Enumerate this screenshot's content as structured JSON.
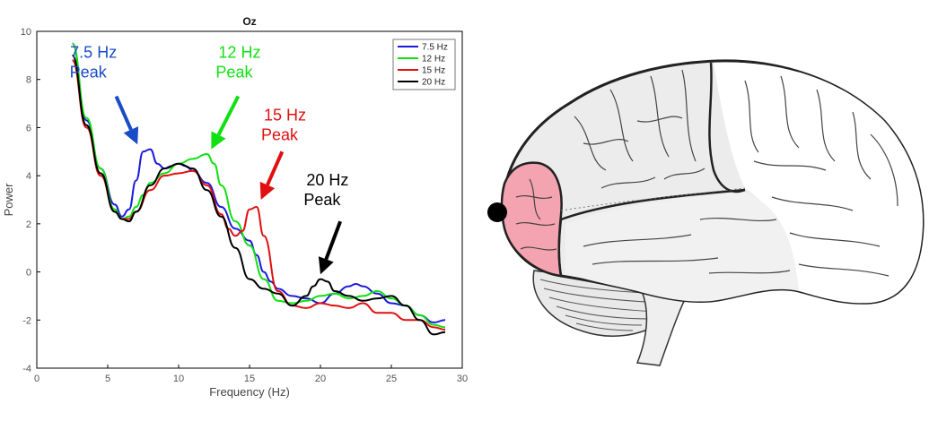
{
  "chart_data": {
    "type": "line",
    "title": "Oz",
    "xlabel": "Frequency (Hz)",
    "ylabel": "Power",
    "xlim": [
      0,
      30
    ],
    "ylim": [
      -4,
      10
    ],
    "xticks": [
      0,
      5,
      10,
      15,
      20,
      25,
      30
    ],
    "yticks": [
      -4,
      -2,
      0,
      2,
      4,
      6,
      8,
      10
    ],
    "grid": false,
    "legend_position": "top-right",
    "series": [
      {
        "name": "7.5 Hz",
        "color": "#1a1adc",
        "x": [
          2.5,
          3.5,
          4.5,
          5.5,
          6.0,
          6.5,
          7.0,
          7.5,
          8.0,
          8.5,
          9.0,
          9.5,
          10.0,
          10.5,
          11.0,
          12.0,
          13.0,
          14.0,
          15.0,
          15.5,
          16.0,
          16.5,
          17.0,
          18.0,
          19.0,
          20.0,
          21.0,
          22.0,
          22.5,
          23.0,
          24.0,
          25.0,
          26.0,
          27.0,
          28.0,
          28.8
        ],
        "y": [
          9.5,
          6.3,
          4.3,
          2.8,
          2.3,
          2.6,
          3.8,
          5.0,
          5.1,
          4.5,
          4.3,
          4.4,
          4.5,
          4.4,
          4.2,
          3.7,
          2.7,
          1.8,
          1.3,
          0.7,
          0.0,
          -0.4,
          -0.7,
          -1.0,
          -1.1,
          -1.3,
          -0.9,
          -0.6,
          -0.5,
          -0.6,
          -0.9,
          -1.3,
          -1.4,
          -1.8,
          -2.1,
          -2.0
        ]
      },
      {
        "name": "12 Hz",
        "color": "#11e011",
        "x": [
          2.5,
          3.5,
          4.5,
          5.5,
          6.0,
          6.5,
          7.0,
          7.5,
          8.0,
          9.0,
          10.0,
          11.0,
          12.0,
          12.5,
          13.0,
          14.0,
          15.0,
          16.0,
          17.0,
          18.0,
          19.0,
          20.0,
          21.0,
          22.0,
          23.0,
          24.0,
          25.0,
          26.0,
          27.0,
          28.0,
          28.8
        ],
        "y": [
          9.5,
          6.4,
          4.3,
          2.6,
          2.2,
          2.3,
          2.7,
          3.2,
          3.7,
          4.1,
          4.5,
          4.7,
          4.9,
          4.5,
          3.6,
          2.1,
          1.1,
          -0.3,
          -1.2,
          -1.3,
          -1.2,
          -1.0,
          -0.9,
          -1.1,
          -1.0,
          -0.8,
          -1.1,
          -1.4,
          -1.8,
          -2.2,
          -2.3
        ]
      },
      {
        "name": "15 Hz",
        "color": "#e01010",
        "x": [
          2.5,
          3.5,
          4.5,
          5.5,
          6.0,
          6.5,
          7.0,
          8.0,
          9.0,
          10.0,
          11.0,
          12.0,
          13.0,
          13.5,
          14.0,
          14.5,
          15.0,
          15.5,
          16.0,
          17.0,
          18.0,
          19.0,
          20.0,
          21.0,
          22.0,
          23.0,
          24.0,
          25.0,
          26.0,
          27.0,
          28.0,
          28.8
        ],
        "y": [
          8.8,
          6.0,
          4.0,
          2.5,
          2.2,
          2.2,
          2.5,
          3.4,
          4.0,
          4.1,
          4.2,
          3.6,
          2.4,
          1.8,
          1.5,
          1.7,
          2.6,
          2.7,
          1.5,
          -0.8,
          -1.4,
          -1.5,
          -1.3,
          -1.4,
          -1.5,
          -1.3,
          -1.7,
          -1.7,
          -2.0,
          -2.0,
          -2.3,
          -2.4
        ]
      },
      {
        "name": "20 Hz",
        "color": "#000000",
        "x": [
          2.5,
          3.5,
          4.5,
          5.5,
          6.0,
          6.5,
          7.0,
          8.0,
          9.0,
          10.0,
          11.0,
          12.0,
          13.0,
          14.0,
          15.0,
          16.0,
          17.0,
          18.0,
          19.0,
          19.5,
          20.0,
          20.5,
          21.0,
          22.0,
          23.0,
          24.0,
          25.0,
          26.0,
          27.0,
          28.0,
          28.8
        ],
        "y": [
          9.0,
          6.1,
          4.1,
          2.5,
          2.2,
          2.1,
          2.5,
          3.6,
          4.3,
          4.5,
          4.3,
          3.4,
          2.3,
          1.0,
          -0.3,
          -0.7,
          -0.9,
          -1.4,
          -1.0,
          -0.6,
          -0.3,
          -0.4,
          -0.8,
          -1.0,
          -1.2,
          -1.1,
          -1.0,
          -1.4,
          -2.0,
          -2.6,
          -2.5
        ]
      }
    ],
    "annotations": [
      {
        "name": "7.5 Hz peak",
        "line1": "7.5 Hz",
        "line2": "Peak",
        "color": "#1a4cc8",
        "text_x": 4.0,
        "text_y": 8.9,
        "arrow_from": [
          5.6,
          7.3
        ],
        "arrow_to": [
          7.1,
          5.3
        ]
      },
      {
        "name": "12 Hz peak",
        "line1": "12 Hz",
        "line2": "Peak",
        "color": "#11e011",
        "text_x": 14.3,
        "text_y": 8.9,
        "arrow_from": [
          14.2,
          7.3
        ],
        "arrow_to": [
          12.3,
          5.1
        ]
      },
      {
        "name": "15 Hz peak",
        "line1": "15 Hz",
        "line2": "Peak",
        "color": "#e01010",
        "text_x": 17.5,
        "text_y": 6.3,
        "arrow_from": [
          17.3,
          5.0
        ],
        "arrow_to": [
          15.8,
          3.0
        ]
      },
      {
        "name": "20 Hz peak",
        "line1": "20 Hz",
        "line2": "Peak",
        "color": "#000000",
        "text_x": 20.5,
        "text_y": 3.6,
        "arrow_from": [
          21.4,
          2.1
        ],
        "arrow_to": [
          20.0,
          -0.1
        ]
      }
    ]
  },
  "brain": {
    "highlight_region_color": "#f4a3b0",
    "electrode_color": "#000000"
  }
}
